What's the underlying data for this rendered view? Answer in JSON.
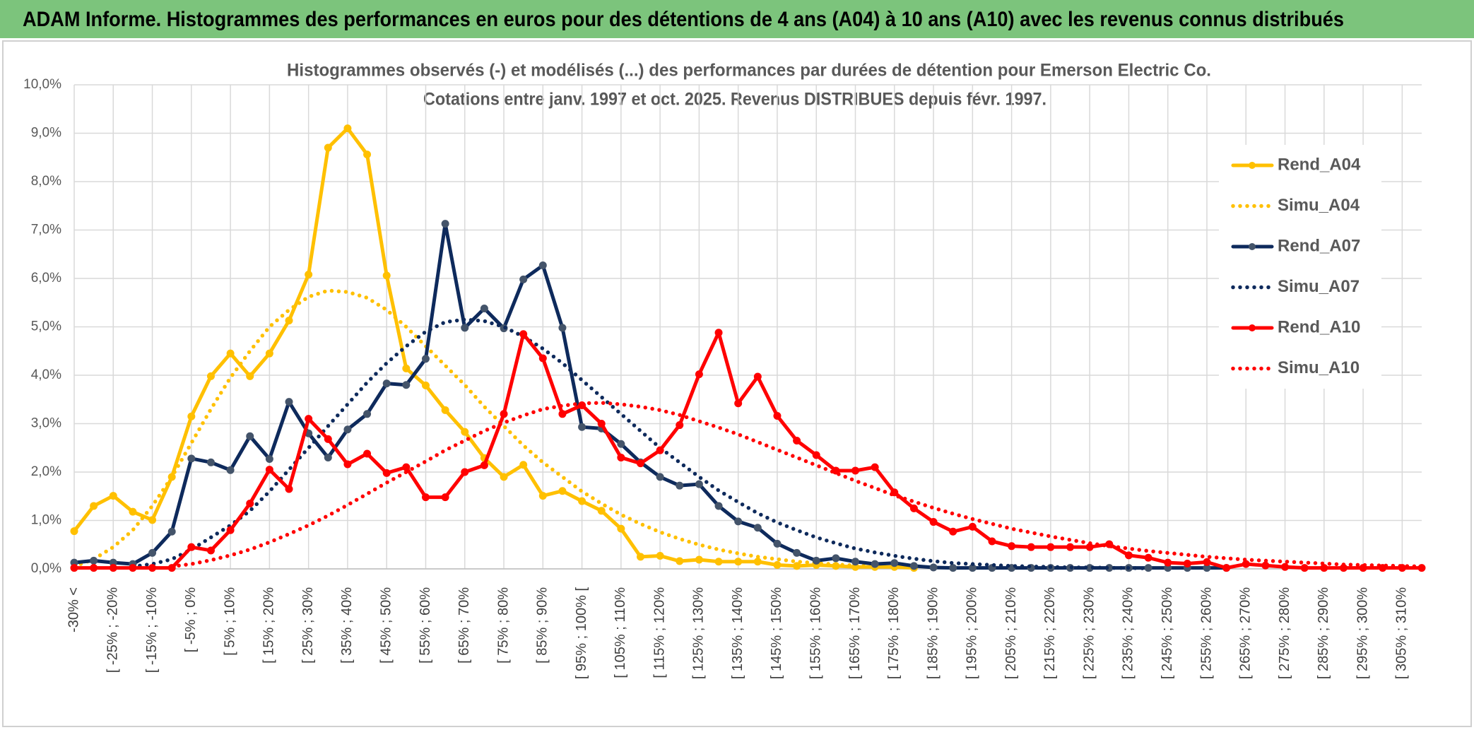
{
  "chart_data": {
    "type": "line",
    "title": "ADAM Informe. Histogrammes des performances en euros pour des détentions de 4 ans (A04) à 10 ans (A10) avec les revenus connus distribués",
    "subtitle": [
      "Histogrammes observés (-) et modélisés (...) des performances par durées de détention pour Emerson Electric Co.",
      "Cotations entre janv. 1997 et oct. 2025. Revenus DISTRIBUES depuis févr. 1997."
    ],
    "categories": [
      "-30% <",
      null,
      "[ -25% ; -20%",
      null,
      "[ -15% ; -10%",
      null,
      "[ -5% ; 0%",
      null,
      "[ 5% ; 10%",
      null,
      "[ 15% ; 20%",
      null,
      "[ 25% ; 30%",
      null,
      "[ 35% ; 40%",
      null,
      "[ 45% ; 50%",
      null,
      "[ 55% ; 60%",
      null,
      "[ 65% ; 70%",
      null,
      "[ 75% ; 80%",
      null,
      "[ 85% ; 90%",
      null,
      "[ 95% ; 100% [",
      null,
      "[ 105% ; 110%",
      null,
      "[ 115% ; 120%",
      null,
      "[ 125% ; 130%",
      null,
      "[ 135% ; 140%",
      null,
      "[ 145% ; 150%",
      null,
      "[ 155% ; 160%",
      null,
      "[ 165% ; 170%",
      null,
      "[ 175% ; 180%",
      null,
      "[ 185% ; 190%",
      null,
      "[ 195% ; 200%",
      null,
      "[ 205% ; 210%",
      null,
      "[ 215% ; 220%",
      null,
      "[ 225% ; 230%",
      null,
      "[ 235% ; 240%",
      null,
      "[ 245% ; 250%",
      null,
      "[ 255% ; 260%",
      null,
      "[ 265% ; 270%",
      null,
      "[ 275% ; 280%",
      null,
      "[ 285% ; 290%",
      null,
      "[ 295% ; 300%",
      null,
      "[ 305% ; 310%",
      null
    ],
    "series": [
      {
        "name": "Rend_A04",
        "color": "#ffc000",
        "marker_color": "#ffc000",
        "style": "solid",
        "markers": true,
        "values": [
          0.78,
          1.3,
          1.51,
          1.18,
          1.01,
          1.9,
          3.15,
          3.98,
          4.45,
          3.98,
          4.45,
          5.13,
          6.08,
          8.7,
          9.1,
          8.56,
          6.06,
          4.14,
          3.79,
          3.28,
          2.83,
          2.29,
          1.9,
          2.15,
          1.51,
          1.61,
          1.4,
          1.2,
          0.83,
          0.25,
          0.27,
          0.16,
          0.19,
          0.15,
          0.15,
          0.15,
          0.08,
          0.06,
          0.08,
          0.06,
          0.04,
          0.04,
          0.04,
          0.02,
          null,
          null,
          null,
          null,
          null,
          null,
          null,
          null,
          null,
          null,
          null,
          null,
          null,
          null,
          null,
          null,
          null,
          null,
          null,
          null,
          null,
          null,
          null,
          null,
          null,
          null
        ]
      },
      {
        "name": "Simu_A04",
        "color": "#ffc000",
        "style": "dotted",
        "markers": false,
        "values": [
          0.05,
          0.2,
          0.45,
          0.8,
          1.3,
          1.9,
          2.6,
          3.3,
          3.95,
          4.5,
          5.0,
          5.35,
          5.62,
          5.75,
          5.72,
          5.6,
          5.35,
          5.0,
          4.6,
          4.2,
          3.8,
          3.35,
          2.95,
          2.55,
          2.2,
          1.9,
          1.6,
          1.35,
          1.12,
          0.93,
          0.76,
          0.62,
          0.5,
          0.4,
          0.32,
          0.25,
          0.2,
          0.15,
          0.12,
          0.09,
          0.07,
          0.05,
          0.04,
          0.03,
          null,
          null,
          null,
          null,
          null,
          null,
          null,
          null,
          null,
          null,
          null,
          null,
          null,
          null,
          null,
          null,
          null,
          null,
          null,
          null,
          null,
          null,
          null,
          null,
          null,
          null
        ]
      },
      {
        "name": "Rend_A07",
        "color": "#0e2a5c",
        "marker_color": "#44546a",
        "style": "solid",
        "markers": true,
        "values": [
          0.13,
          0.17,
          0.13,
          0.1,
          0.33,
          0.77,
          2.28,
          2.2,
          2.04,
          2.74,
          2.27,
          3.45,
          2.8,
          2.3,
          2.88,
          3.2,
          3.83,
          3.8,
          4.34,
          7.13,
          4.98,
          5.38,
          4.97,
          5.98,
          6.27,
          4.98,
          2.93,
          2.9,
          2.58,
          2.2,
          1.9,
          1.72,
          1.75,
          1.3,
          0.98,
          0.85,
          0.52,
          0.33,
          0.17,
          0.22,
          0.15,
          0.1,
          0.12,
          0.06,
          0.03,
          0.02,
          0.02,
          0.02,
          0.02,
          0.02,
          0.02,
          0.02,
          0.02,
          0.02,
          0.02,
          0.02,
          0.02,
          0.02,
          0.02,
          0.02,
          null,
          null,
          null,
          null,
          null,
          null,
          null,
          null,
          null,
          null
        ]
      },
      {
        "name": "Simu_A07",
        "color": "#0e2a5c",
        "style": "dotted",
        "markers": false,
        "values": [
          null,
          null,
          null,
          0.05,
          0.1,
          0.2,
          0.4,
          0.65,
          0.9,
          1.2,
          1.6,
          2.05,
          2.5,
          2.95,
          3.4,
          3.85,
          4.25,
          4.6,
          4.9,
          5.1,
          5.15,
          5.12,
          5.0,
          4.8,
          4.55,
          4.25,
          3.9,
          3.55,
          3.2,
          2.85,
          2.5,
          2.2,
          1.9,
          1.62,
          1.38,
          1.15,
          0.96,
          0.8,
          0.65,
          0.53,
          0.42,
          0.34,
          0.27,
          0.21,
          0.16,
          0.12,
          0.1,
          0.08,
          0.06,
          0.05,
          0.04,
          0.03,
          0.03,
          0.02,
          0.02,
          0.01,
          null,
          null,
          null,
          null,
          null,
          null,
          null,
          null,
          null,
          null,
          null,
          null,
          null,
          null
        ]
      },
      {
        "name": "Rend_A10",
        "color": "#ff0000",
        "marker_color": "#ff0000",
        "style": "solid",
        "markers": true,
        "values": [
          0.02,
          0.02,
          0.02,
          0.02,
          0.02,
          0.02,
          0.45,
          0.38,
          0.8,
          1.35,
          2.05,
          1.65,
          3.1,
          2.68,
          2.16,
          2.38,
          1.98,
          2.1,
          1.48,
          1.48,
          2.0,
          2.14,
          3.2,
          4.85,
          4.35,
          3.2,
          3.38,
          3.0,
          2.3,
          2.18,
          2.45,
          2.97,
          4.02,
          4.88,
          3.42,
          3.97,
          3.16,
          2.65,
          2.35,
          2.03,
          2.03,
          2.1,
          1.58,
          1.25,
          0.97,
          0.77,
          0.87,
          0.57,
          0.47,
          0.45,
          0.45,
          0.45,
          0.45,
          0.51,
          0.28,
          0.23,
          0.13,
          0.11,
          0.14,
          0.02,
          0.1,
          0.07,
          0.04,
          0.02,
          0.02,
          0.02,
          0.02,
          0.02,
          0.02,
          0.02
        ]
      },
      {
        "name": "Simu_A10",
        "color": "#ff0000",
        "style": "dotted",
        "markers": false,
        "values": [
          null,
          null,
          null,
          null,
          null,
          0.05,
          0.1,
          0.18,
          0.28,
          0.4,
          0.55,
          0.72,
          0.9,
          1.1,
          1.32,
          1.55,
          1.78,
          2.0,
          2.22,
          2.45,
          2.65,
          2.85,
          3.02,
          3.17,
          3.3,
          3.37,
          3.42,
          3.43,
          3.4,
          3.35,
          3.28,
          3.18,
          3.05,
          2.92,
          2.78,
          2.62,
          2.46,
          2.3,
          2.14,
          1.98,
          1.82,
          1.67,
          1.52,
          1.39,
          1.26,
          1.14,
          1.03,
          0.93,
          0.83,
          0.75,
          0.67,
          0.6,
          0.53,
          0.47,
          0.42,
          0.37,
          0.33,
          0.29,
          0.25,
          0.22,
          0.19,
          0.17,
          0.15,
          0.13,
          0.11,
          0.09,
          0.08,
          0.07,
          0.06,
          0.05
        ]
      }
    ],
    "ylim": [
      0,
      10
    ],
    "yticks": [
      {
        "value": 0,
        "label": "0,0%"
      },
      {
        "value": 1,
        "label": "1,0%"
      },
      {
        "value": 2,
        "label": "2,0%"
      },
      {
        "value": 3,
        "label": "3,0%"
      },
      {
        "value": 4,
        "label": "4,0%"
      },
      {
        "value": 5,
        "label": "5,0%"
      },
      {
        "value": 6,
        "label": "6,0%"
      },
      {
        "value": 7,
        "label": "7,0%"
      },
      {
        "value": 8,
        "label": "8,0%"
      },
      {
        "value": 9,
        "label": "9,0%"
      },
      {
        "value": 10,
        "label": "10,0%"
      }
    ],
    "grid": true,
    "legend": "right"
  }
}
